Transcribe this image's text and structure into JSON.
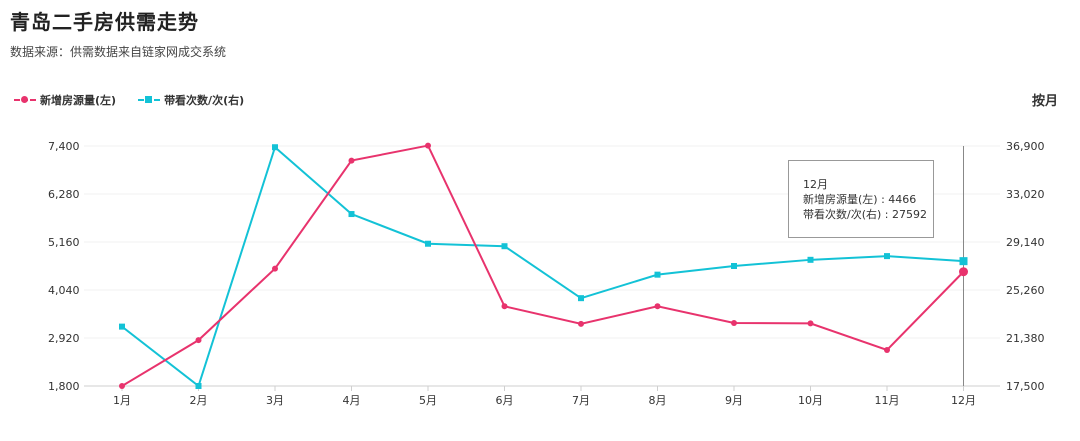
{
  "title": "青岛二手房供需走势",
  "subtitle": "数据来源：供需数据来自链家网成交系统",
  "period_label": "按月",
  "colors": {
    "series1": "#e8336d",
    "series2": "#13c2d6"
  },
  "chart_data": {
    "type": "line",
    "title": "青岛二手房供需走势",
    "categories": [
      "1月",
      "2月",
      "3月",
      "4月",
      "5月",
      "6月",
      "7月",
      "8月",
      "9月",
      "10月",
      "11月",
      "12月"
    ],
    "y_left": {
      "ticks": [
        "7,400",
        "6,280",
        "5,160",
        "4,040",
        "2,920",
        "1,800"
      ],
      "min": 1800,
      "max": 7400
    },
    "y_right": {
      "ticks": [
        "36,900",
        "33,020",
        "29,140",
        "25,260",
        "21,380",
        "17,500"
      ],
      "min": 17500,
      "max": 36900
    },
    "series": [
      {
        "name": "新增房源量(左)",
        "axis": "left",
        "marker": "circle",
        "values": [
          1800,
          2870,
          4540,
          7060,
          7410,
          3660,
          3250,
          3660,
          3270,
          3260,
          2640,
          4466
        ]
      },
      {
        "name": "带看次数/次(右)",
        "axis": "right",
        "marker": "square",
        "values": [
          22300,
          17500,
          36800,
          31400,
          29000,
          28800,
          24600,
          26500,
          27200,
          27700,
          28000,
          27592
        ]
      }
    ],
    "grid": true,
    "legend_position": "top-left",
    "tooltip": {
      "header": "12月",
      "rows": [
        "新增房源量(左) : 4466",
        "带看次数/次(右) : 27592"
      ]
    }
  }
}
